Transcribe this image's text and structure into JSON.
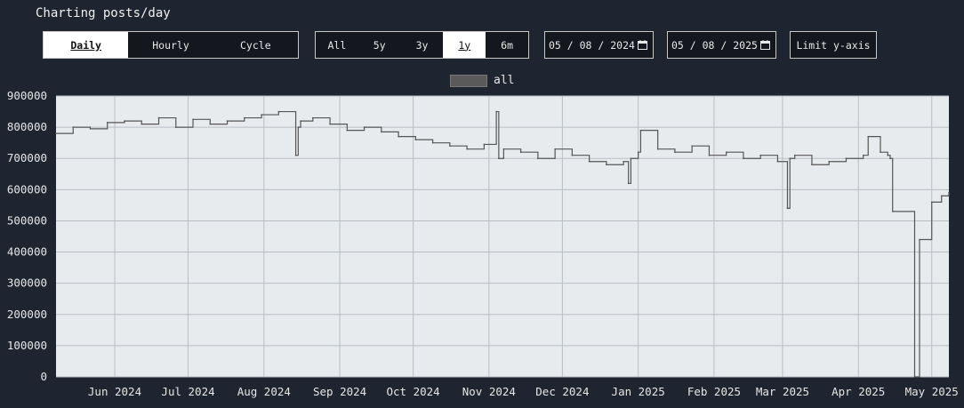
{
  "title": "Charting posts/day",
  "modes": [
    {
      "label": "Daily",
      "active": true
    },
    {
      "label": "Hourly",
      "active": false
    },
    {
      "label": "Cycle",
      "active": false
    }
  ],
  "ranges": [
    {
      "label": "All",
      "active": false
    },
    {
      "label": "5y",
      "active": false
    },
    {
      "label": "3y",
      "active": false
    },
    {
      "label": "1y",
      "active": true
    },
    {
      "label": "6m",
      "active": false
    }
  ],
  "date_start": "05 / 08 / 2024",
  "date_end": "05 / 08 / 2025",
  "limit_label": "Limit y-axis",
  "icons": {
    "calendar": "calendar-icon"
  },
  "colors": {
    "background": "#1e2430",
    "plot_bg": "#e8ebee",
    "line": "#555555",
    "legend": "#5a5a5a"
  },
  "chart_data": {
    "type": "line",
    "step": true,
    "series": [
      {
        "name": "all",
        "x": [
          "2024-05-08",
          "2024-05-15",
          "2024-05-22",
          "2024-05-29",
          "2024-06-05",
          "2024-06-12",
          "2024-06-19",
          "2024-06-26",
          "2024-07-03",
          "2024-07-10",
          "2024-07-17",
          "2024-07-24",
          "2024-07-31",
          "2024-08-07",
          "2024-08-14",
          "2024-08-15",
          "2024-08-16",
          "2024-08-21",
          "2024-08-28",
          "2024-09-04",
          "2024-09-11",
          "2024-09-18",
          "2024-09-25",
          "2024-10-02",
          "2024-10-09",
          "2024-10-16",
          "2024-10-23",
          "2024-10-30",
          "2024-11-04",
          "2024-11-05",
          "2024-11-07",
          "2024-11-14",
          "2024-11-21",
          "2024-11-28",
          "2024-12-05",
          "2024-12-12",
          "2024-12-19",
          "2024-12-26",
          "2024-12-28",
          "2024-12-29",
          "2025-01-01",
          "2025-01-02",
          "2025-01-09",
          "2025-01-16",
          "2025-01-23",
          "2025-01-30",
          "2025-02-06",
          "2025-02-13",
          "2025-02-20",
          "2025-02-27",
          "2025-03-03",
          "2025-03-04",
          "2025-03-06",
          "2025-03-13",
          "2025-03-20",
          "2025-03-27",
          "2025-04-03",
          "2025-04-05",
          "2025-04-10",
          "2025-04-13",
          "2025-04-14",
          "2025-04-15",
          "2025-04-24",
          "2025-04-25",
          "2025-04-26",
          "2025-05-01",
          "2025-05-05",
          "2025-05-08"
        ],
        "y": [
          780000,
          800000,
          795000,
          815000,
          820000,
          810000,
          830000,
          800000,
          825000,
          810000,
          820000,
          830000,
          840000,
          850000,
          710000,
          800000,
          820000,
          830000,
          810000,
          790000,
          800000,
          785000,
          770000,
          760000,
          750000,
          740000,
          730000,
          745000,
          850000,
          700000,
          730000,
          720000,
          700000,
          730000,
          710000,
          690000,
          680000,
          690000,
          620000,
          700000,
          720000,
          790000,
          730000,
          720000,
          740000,
          710000,
          720000,
          700000,
          710000,
          690000,
          540000,
          700000,
          710000,
          680000,
          690000,
          700000,
          710000,
          770000,
          720000,
          710000,
          700000,
          530000,
          0,
          0,
          440000,
          560000,
          580000,
          590000
        ]
      }
    ],
    "title": "",
    "xlabel": "",
    "ylabel": "",
    "ylim": [
      0,
      900000
    ],
    "yticks": [
      0,
      100000,
      200000,
      300000,
      400000,
      500000,
      600000,
      700000,
      800000,
      900000
    ],
    "ytick_labels": [
      "0",
      "100000",
      "200000",
      "300000",
      "400000",
      "500000",
      "600000",
      "700000",
      "800000",
      "900000"
    ],
    "xticks": [
      "2024-06-01",
      "2024-07-01",
      "2024-08-01",
      "2024-09-01",
      "2024-10-01",
      "2024-11-01",
      "2024-12-01",
      "2025-01-01",
      "2025-02-01",
      "2025-03-01",
      "2025-04-01",
      "2025-05-01"
    ],
    "xtick_labels": [
      "Jun 2024",
      "Jul 2024",
      "Aug 2024",
      "Sep 2024",
      "Oct 2024",
      "Nov 2024",
      "Dec 2024",
      "Jan 2025",
      "Feb 2025",
      "Mar 2025",
      "Apr 2025",
      "May 2025"
    ],
    "xlim": [
      "2024-05-08",
      "2025-05-08"
    ],
    "grid": true,
    "legend_position": "top-center"
  }
}
